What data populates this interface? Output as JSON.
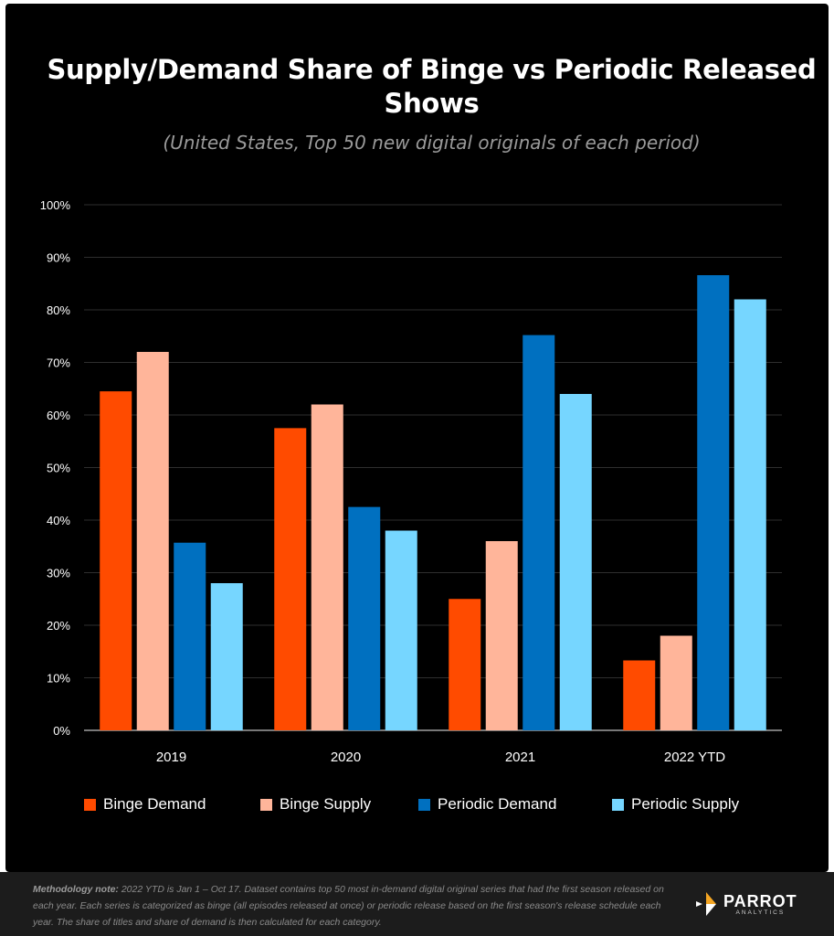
{
  "chart_data": {
    "type": "bar",
    "title": "Supply/Demand Share of Binge vs Periodic Released Shows",
    "subtitle": "(United States, Top 50 new digital originals of each period)",
    "categories": [
      "2019",
      "2020",
      "2021",
      "2022 YTD"
    ],
    "series": [
      {
        "name": "Binge Demand",
        "color": "#ff4b00",
        "values": [
          64.5,
          57.5,
          25,
          13.3
        ]
      },
      {
        "name": "Binge Supply",
        "color": "#ffb59a",
        "values": [
          72,
          62,
          36,
          18
        ]
      },
      {
        "name": "Periodic Demand",
        "color": "#0070c0",
        "values": [
          35.7,
          42.5,
          75.2,
          86.6
        ]
      },
      {
        "name": "Periodic Supply",
        "color": "#76d6ff",
        "values": [
          28,
          38,
          64,
          82
        ]
      }
    ],
    "ylim": [
      0,
      100
    ],
    "yticks": [
      "0%",
      "10%",
      "20%",
      "30%",
      "40%",
      "50%",
      "60%",
      "70%",
      "80%",
      "90%",
      "100%"
    ],
    "xlabel": "",
    "ylabel": "",
    "grid": true,
    "legend_position": "bottom"
  },
  "footer": {
    "note_label": "Methodology note:",
    "note_text": "2022 YTD is Jan 1 – Oct 17.  Dataset contains top 50 most in-demand digital original series that had the first season released on each year. Each series is categorized as binge (all episodes released at once) or periodic release based on the first season's release schedule each year. The share of titles and share of demand is then calculated for each category.",
    "logo_name": "PARROT",
    "logo_sub": "ANALYTICS"
  }
}
